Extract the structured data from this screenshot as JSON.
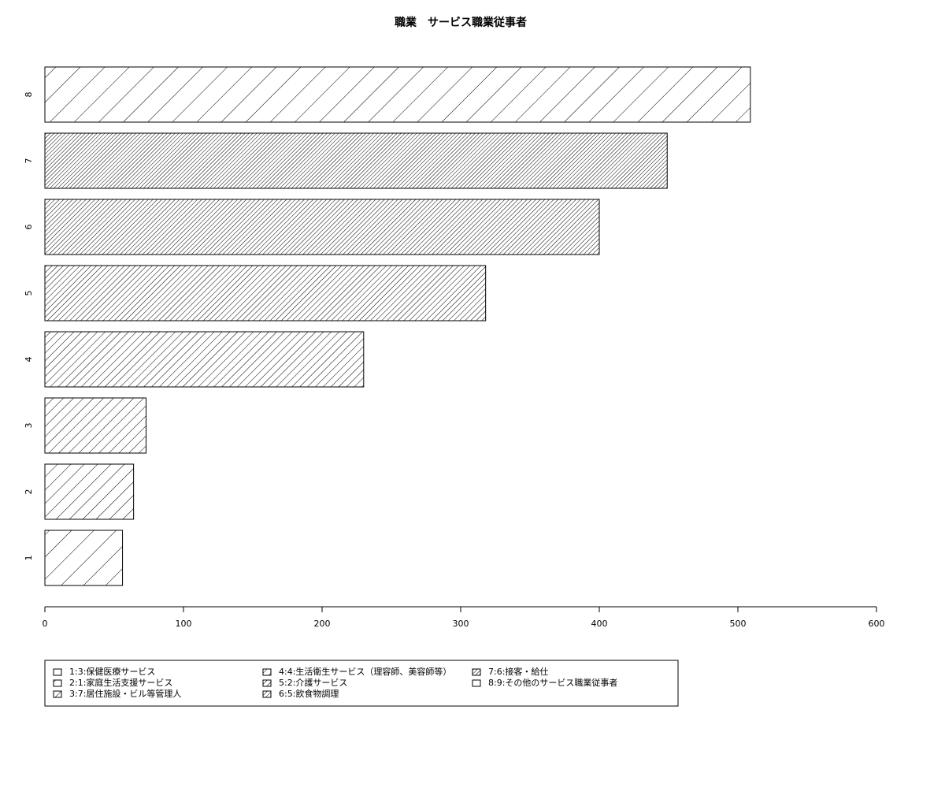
{
  "chart_data": {
    "type": "bar",
    "orientation": "horizontal",
    "title": "職業　サービス職業従事者",
    "categories": [
      "1",
      "2",
      "3",
      "4",
      "5",
      "6",
      "7",
      "8"
    ],
    "values": [
      56,
      64,
      73,
      230,
      318,
      400,
      449,
      509
    ],
    "color": "#000000",
    "xlim": [
      0,
      600
    ],
    "xticks": [
      0,
      100,
      200,
      300,
      400,
      500,
      600
    ],
    "legend": [
      "1:3:保健医療サービス",
      "2:1:家庭生活支援サービス",
      "3:7:居住施設・ビル等管理人",
      "4:4:生活衛生サービス（理容師、美容師等）",
      "5:2:介護サービス",
      "6:5:飲食物調理",
      "7:6:接客・給仕",
      "8:9:その他のサービス職業従事者"
    ]
  }
}
